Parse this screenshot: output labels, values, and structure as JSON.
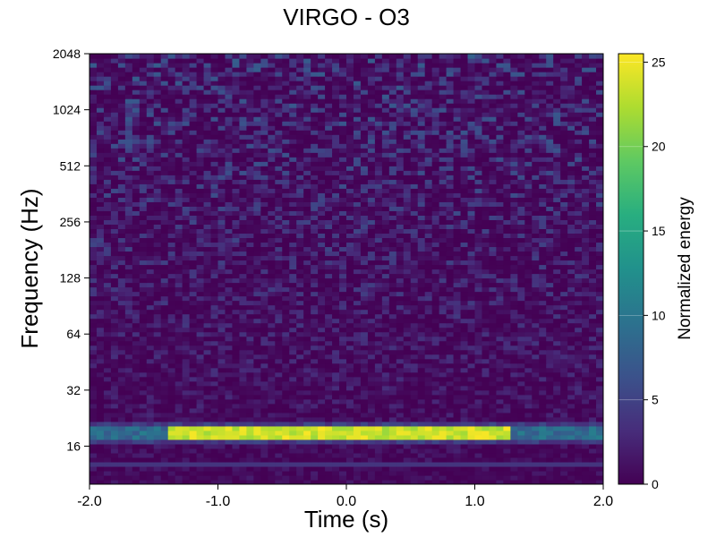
{
  "chart_data": {
    "type": "heatmap",
    "title": "VIRGO - O3",
    "xlabel": "Time (s)",
    "ylabel": "Frequency (Hz)",
    "xlim": [
      -2.0,
      2.0
    ],
    "ylim": [
      10,
      2048
    ],
    "yscale": "log2",
    "x_ticks": [
      -2.0,
      -1.0,
      0.0,
      1.0,
      2.0
    ],
    "x_tick_labels": [
      "-2.0",
      "-1.0",
      "0.0",
      "1.0",
      "2.0"
    ],
    "y_ticks": [
      16,
      32,
      64,
      128,
      256,
      512,
      1024,
      2048
    ],
    "y_tick_labels": [
      "16",
      "32",
      "64",
      "128",
      "256",
      "512",
      "1024",
      "2048"
    ],
    "colormap": "viridis",
    "colorbar": {
      "label": "Normalized energy",
      "range": [
        0,
        25.5
      ],
      "ticks": [
        0,
        5,
        10,
        15,
        20,
        25
      ],
      "tick_labels": [
        "0",
        "5",
        "10",
        "15",
        "20",
        "25"
      ]
    },
    "features": [
      {
        "kind": "bright band",
        "time_range": [
          -2.0,
          2.0
        ],
        "frequency_hz": 19,
        "peak_energy": 25.5,
        "peak_time_range": [
          -1.4,
          1.3
        ]
      },
      {
        "kind": "faint band",
        "time_range": [
          -2.0,
          2.0
        ],
        "frequency_hz": 13,
        "peak_energy": 4
      }
    ],
    "background_energy": [
      0,
      8
    ],
    "grid": false
  }
}
